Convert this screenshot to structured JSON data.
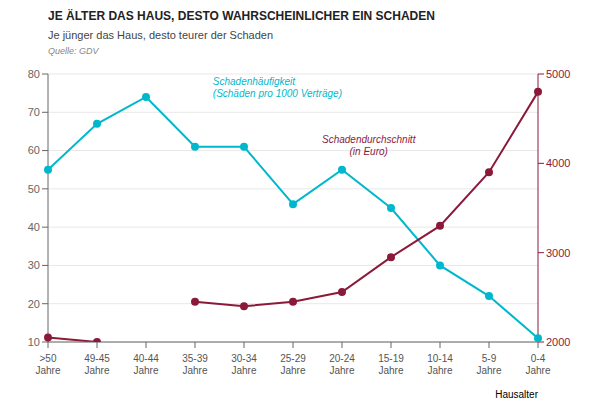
{
  "chart_data": {
    "type": "line",
    "title": "JE ÄLTER DAS HAUS, DESTO WAHRSCHEINLICHER EIN SCHADEN",
    "subtitle": "Je jünger das Haus, desto teurer der Schaden",
    "source": "Quelle: GDV",
    "x_label": "Hausalter",
    "categories": [
      ">50\nJahre",
      "49-45\nJahre",
      "40-44\nJahre",
      "35-39\nJahre",
      "30-34\nJahre",
      "25-29\nJahre",
      "20-24\nJahre",
      "15-19\nJahre",
      "10-14\nJahre",
      "5-9\nJahre",
      "0-4\nJahre"
    ],
    "series": [
      {
        "color": "#00b8cc",
        "marker": "o",
        "values": [
          55,
          67,
          74,
          61,
          61,
          46,
          55,
          45,
          30,
          22,
          11
        ]
      },
      {
        "color": "#8b1a3a",
        "marker": "o",
        "axis": "y2",
        "values": [
          2050,
          2000,
          null,
          2450,
          2400,
          2450,
          2560,
          2950,
          3300,
          3900,
          4800
        ]
      }
    ],
    "annotations": [
      "Schadenhäufigkeit\n(Schäden pro 1000 Verträge)",
      "Schadendurchschnitt\n(in Euro)"
    ],
    "ylim": [
      10,
      80
    ],
    "yticks": [
      10,
      20,
      30,
      40,
      50,
      60,
      70,
      80
    ],
    "y2lim": [
      2000,
      5000
    ],
    "y2ticks": [
      2000,
      3000,
      4000,
      5000
    ],
    "grid": true
  }
}
